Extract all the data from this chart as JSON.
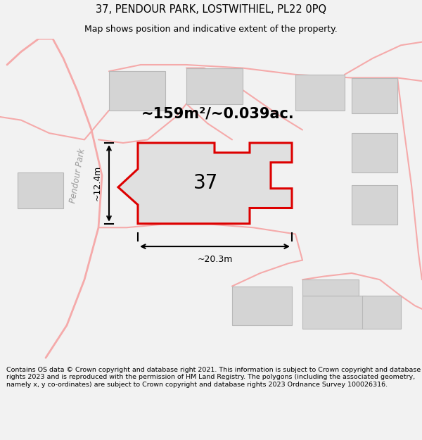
{
  "title": "37, PENDOUR PARK, LOSTWITHIEL, PL22 0PQ",
  "subtitle": "Map shows position and indicative extent of the property.",
  "footer": "Contains OS data © Crown copyright and database right 2021. This information is subject to Crown copyright and database rights 2023 and is reproduced with the permission of HM Land Registry. The polygons (including the associated geometry, namely x, y co-ordinates) are subject to Crown copyright and database rights 2023 Ordnance Survey 100026316.",
  "area_label": "~159m²/~0.039ac.",
  "plot_number": "37",
  "dim_width": "~20.3m",
  "dim_height": "~12.4m",
  "bg_color": "#f2f2f2",
  "map_bg": "#f2f2f2",
  "plot_fill": "#e0e0e0",
  "plot_outline": "#dd0000",
  "road_color": "#f5aaaa",
  "building_fill": "#d4d4d4",
  "building_outline": "#b8b8b8"
}
